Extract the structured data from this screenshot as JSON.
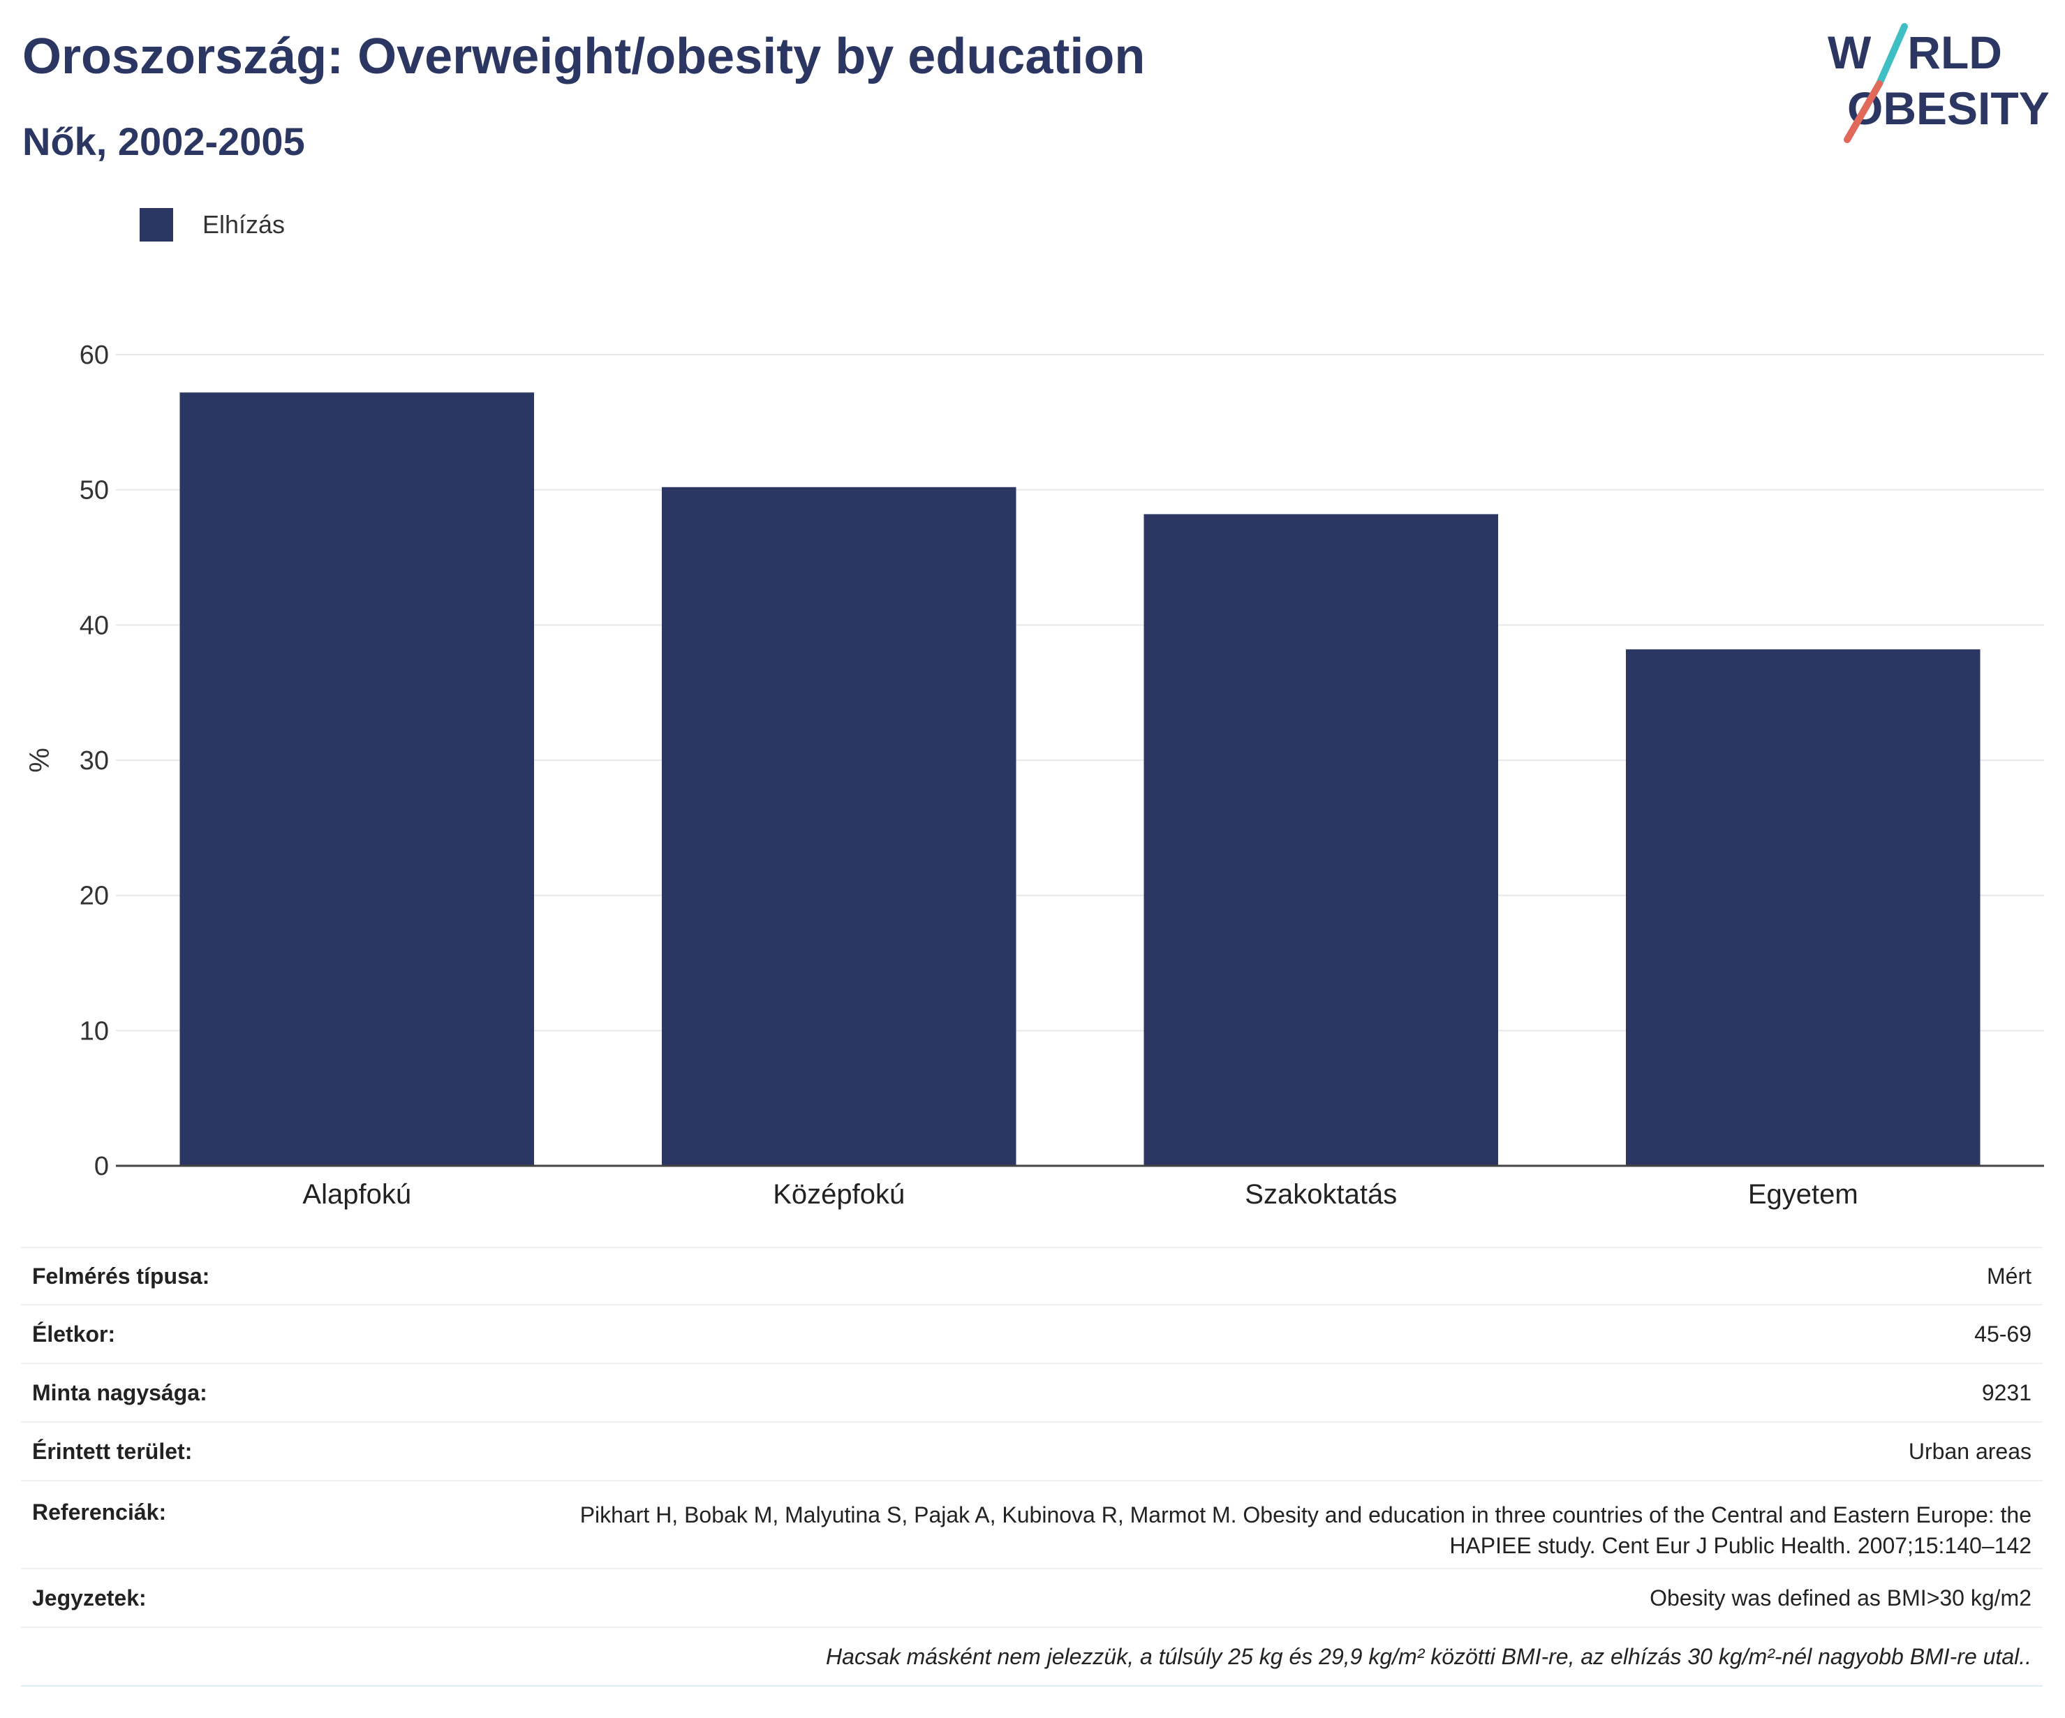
{
  "header": {
    "title": "Oroszország: Overweight/obesity by education",
    "subtitle": "Nők, 2002-2005"
  },
  "logo": {
    "line1_a": "W",
    "line1_b": "RLD",
    "line2_a": "O",
    "line2_b": "BESITY",
    "text_color": "#2b3762",
    "slash_top_color": "#3fbfc4",
    "slash_bottom_color": "#e0695a"
  },
  "legend": {
    "items": [
      {
        "label": "Elhízás",
        "color": "#2b3762"
      }
    ]
  },
  "chart_data": {
    "type": "bar",
    "categories": [
      "Alapfokú",
      "Középfokú",
      "Szakoktatás",
      "Egyetem"
    ],
    "series": [
      {
        "name": "Elhízás",
        "values": [
          57.2,
          50.2,
          48.2,
          38.2
        ],
        "color": "#2b3762"
      }
    ],
    "ylabel": "%",
    "ylim": [
      0,
      60
    ],
    "yticks": [
      0,
      10,
      20,
      30,
      40,
      50,
      60
    ],
    "grid": true,
    "legend_position": "top-left"
  },
  "meta": {
    "rows": [
      {
        "label": "Felmérés típusa:",
        "value": "Mért"
      },
      {
        "label": "Életkor:",
        "value": "45-69"
      },
      {
        "label": "Minta nagysága:",
        "value": "9231"
      },
      {
        "label": "Érintett terület:",
        "value": "Urban areas"
      },
      {
        "label": "Referenciák:",
        "value": "Pikhart H, Bobak M, Malyutina S, Pajak A, Kubinova R, Marmot M. Obesity and education in three countries of the Central and Eastern Europe: the HAPIEE study. Cent Eur J Public Health. 2007;15:140–142"
      },
      {
        "label": "Jegyzetek:",
        "value": "Obesity was defined as BMI>30 kg/m2"
      }
    ],
    "footnote": "Hacsak másként nem jelezzük, a túlsúly 25 kg és 29,9 kg/m² közötti BMI-re, az elhízás 30 kg/m²-nél nagyobb BMI-re utal.."
  }
}
